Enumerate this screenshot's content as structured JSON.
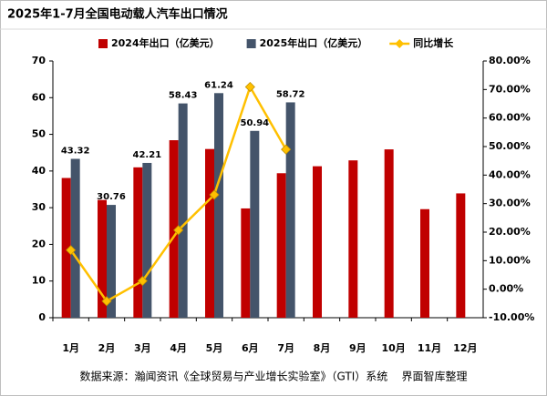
{
  "chart_data": {
    "type": "bar_line",
    "title": "2025年1-7月全国电动载人汽车出口情况",
    "categories": [
      "1月",
      "2月",
      "3月",
      "4月",
      "5月",
      "6月",
      "7月",
      "8月",
      "9月",
      "10月",
      "11月",
      "12月"
    ],
    "series": [
      {
        "name": "2024年出口（亿美元）",
        "color": "#c00000",
        "type": "bar",
        "values": [
          38.1,
          32.1,
          41.0,
          48.4,
          46.0,
          29.8,
          39.4,
          41.3,
          42.9,
          45.9,
          29.6,
          33.9
        ]
      },
      {
        "name": "2025年出口（亿美元）",
        "color": "#44546a",
        "type": "bar",
        "values": [
          43.32,
          30.76,
          42.21,
          58.43,
          61.24,
          50.94,
          58.72,
          null,
          null,
          null,
          null,
          null
        ]
      },
      {
        "name": "同比增长",
        "color": "#ffc000",
        "type": "line",
        "axis": "y2",
        "values": [
          13.7,
          -4.2,
          2.9,
          20.7,
          33.1,
          70.9,
          49.0,
          null,
          null,
          null,
          null,
          null
        ]
      }
    ],
    "ylim": [
      0,
      70
    ],
    "yticks": [
      0,
      10,
      20,
      30,
      40,
      50,
      60,
      70
    ],
    "y2lim": [
      -10,
      80
    ],
    "y2ticks": [
      {
        "value": -10,
        "label": "-10.00%"
      },
      {
        "value": 0,
        "label": "0.00%"
      },
      {
        "value": 10,
        "label": "10.00%"
      },
      {
        "value": 20,
        "label": "20.00%"
      },
      {
        "value": 30,
        "label": "30.00%"
      },
      {
        "value": 40,
        "label": "40.00%"
      },
      {
        "value": 50,
        "label": "50.00%"
      },
      {
        "value": 60,
        "label": "60.00%"
      },
      {
        "value": 70,
        "label": "70.00%"
      },
      {
        "value": 80,
        "label": "80.00%"
      }
    ],
    "grid": false,
    "legend": "top",
    "source": "数据来源：瀚闻资讯《全球贸易与产业增长实验室》（GTI）系统    界面智库整理"
  }
}
